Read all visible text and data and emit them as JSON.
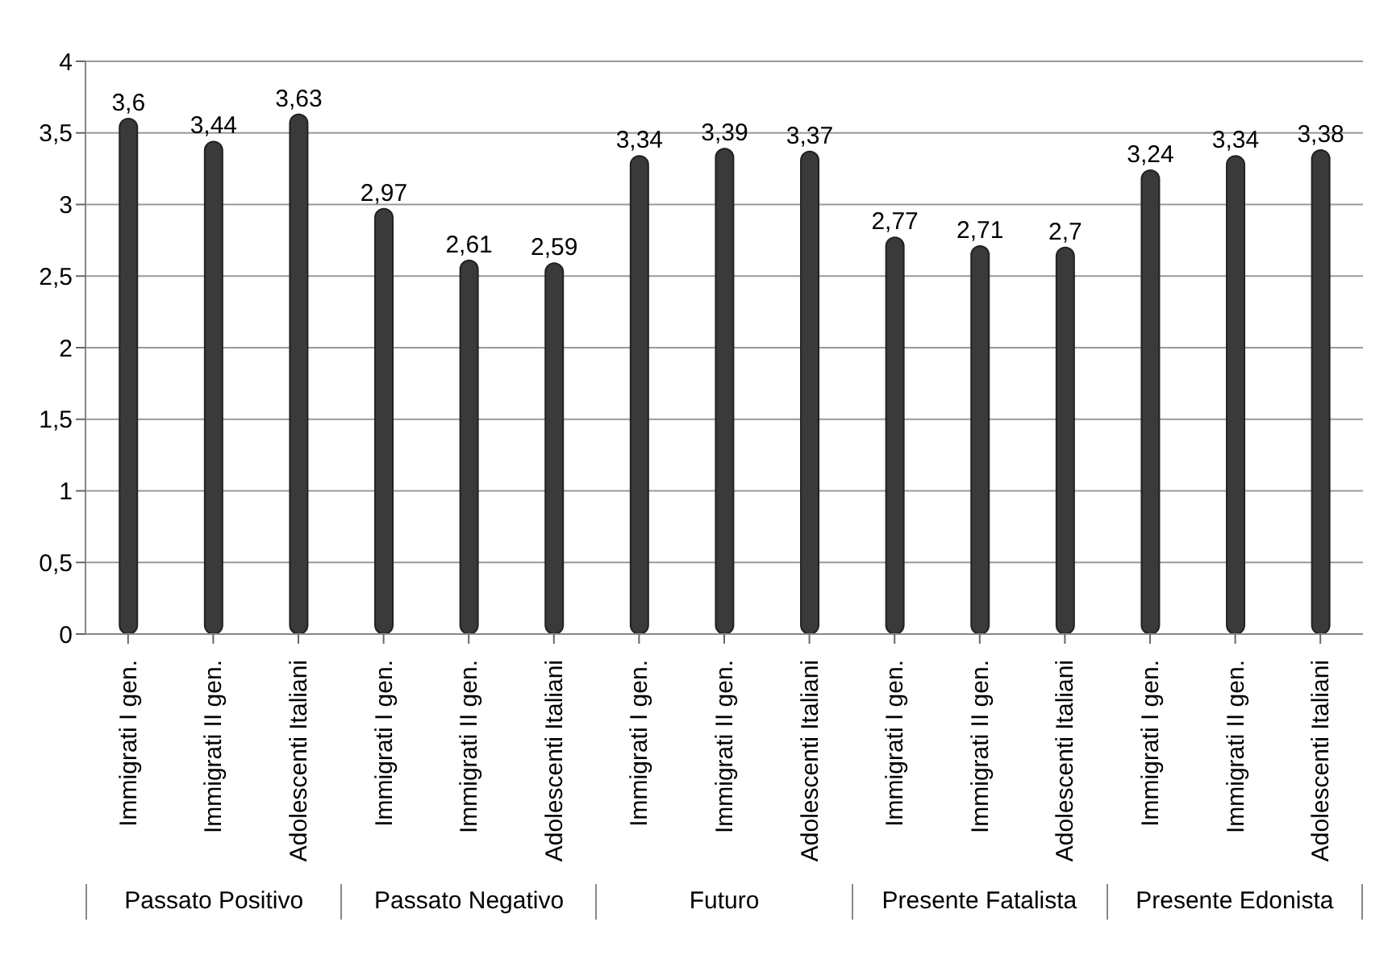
{
  "chart_data": {
    "type": "bar",
    "categories": [
      "Immigrati I gen.",
      "Immigrati II gen.",
      "Adolescenti Italiani",
      "Immigrati I gen.",
      "Immigrati II gen.",
      "Adolescenti Italiani",
      "Immigrati I gen.",
      "Immigrati II gen.",
      "Adolescenti Italiani",
      "Immigrati I gen.",
      "Immigrati II gen.",
      "Adolescenti Italiani",
      "Immigrati I gen.",
      "Immigrati II gen.",
      "Adolescenti Italiani"
    ],
    "values": [
      3.6,
      3.44,
      3.63,
      2.97,
      2.61,
      2.59,
      3.34,
      3.39,
      3.37,
      2.77,
      2.71,
      2.7,
      3.24,
      3.34,
      3.38
    ],
    "value_labels": [
      "3,6",
      "3,44",
      "3,63",
      "2,97",
      "2,61",
      "2,59",
      "3,34",
      "3,39",
      "3,37",
      "2,77",
      "2,71",
      "2,7",
      "3,24",
      "3,34",
      "3,38"
    ],
    "color": "#3a3a3a",
    "ylim": [
      0,
      4
    ],
    "yticks": [
      0,
      {
        "value": 0.5,
        "label": "0,5"
      },
      1,
      {
        "value": 1.5,
        "label": "1,5"
      },
      2,
      {
        "value": 2.5,
        "label": "2,5"
      },
      3,
      {
        "value": 3.5,
        "label": "3,5"
      },
      4
    ],
    "grid": "y",
    "annotations": [
      "Passato Positivo",
      "Passato Negativo",
      "Futuro",
      "Presente Fatalista",
      "Presente Edonista"
    ]
  }
}
